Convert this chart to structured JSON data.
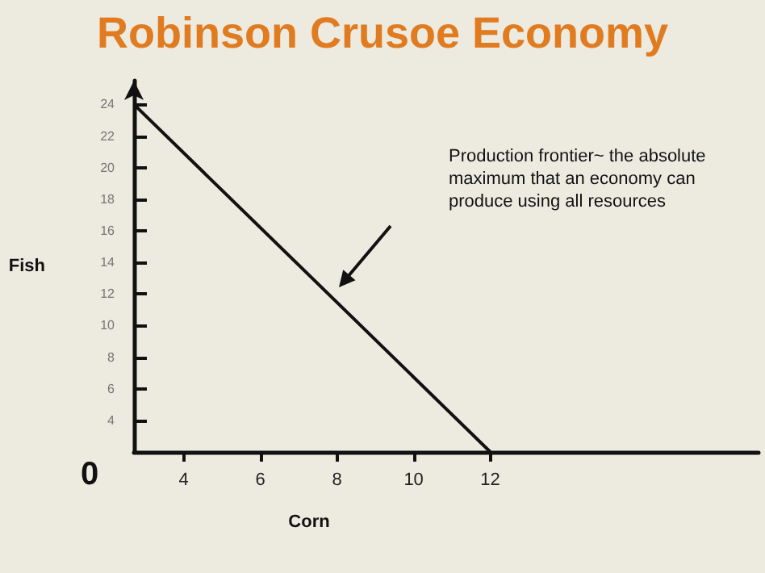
{
  "chart_data": {
    "type": "line",
    "title": "Robinson Crusoe Economy",
    "xlabel": "Corn",
    "ylabel": "Fish",
    "x": [
      2.7,
      12
    ],
    "series": [
      {
        "color": "#111111",
        "values": [
          24,
          2
        ]
      }
    ],
    "xlim": [
      2.7,
      19
    ],
    "xticks": [
      4,
      6,
      8,
      10,
      12
    ],
    "ylim": [
      2,
      25.5
    ],
    "yticks": [
      4,
      6,
      8,
      10,
      12,
      14,
      16,
      18,
      20,
      22,
      24
    ],
    "grid": false,
    "marker": "none",
    "line_style": "solid",
    "annotations": [
      "0",
      "Production frontier~ the absolute maximum that an economy can produce using all resources"
    ]
  }
}
